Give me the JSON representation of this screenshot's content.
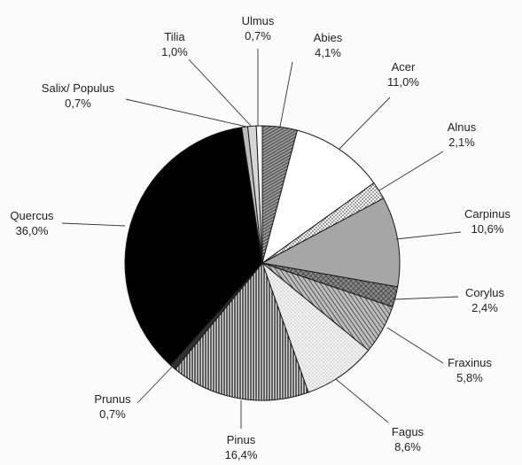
{
  "chart_data": {
    "type": "pie",
    "title": "",
    "start_angle_deg": 0,
    "direction": "clockwise",
    "slices": [
      {
        "label": "Abies",
        "value_label": "4,1%",
        "value": 4.1,
        "fill": "hatch-dense",
        "color": "#6a6a6a"
      },
      {
        "label": "Acer",
        "value_label": "11,0%",
        "value": 11.0,
        "fill": "solid",
        "color": "#ffffff"
      },
      {
        "label": "Alnus",
        "value_label": "2,1%",
        "value": 2.1,
        "fill": "dots",
        "color": "#c8c8c8"
      },
      {
        "label": "Carpinus",
        "value_label": "10,6%",
        "value": 10.6,
        "fill": "solid",
        "color": "#a6a6a6"
      },
      {
        "label": "Corylus",
        "value_label": "2,4%",
        "value": 2.4,
        "fill": "hatch-cross",
        "color": "#5a5a5a"
      },
      {
        "label": "Fraxinus",
        "value_label": "5,8%",
        "value": 5.8,
        "fill": "hatch-diag",
        "color": "#7a7a7a"
      },
      {
        "label": "Fagus",
        "value_label": "8,6%",
        "value": 8.6,
        "fill": "stipple",
        "color": "#e0e0e0"
      },
      {
        "label": "Pinus",
        "value_label": "16,4%",
        "value": 16.4,
        "fill": "hatch-vertical",
        "color": "#6e6e6e"
      },
      {
        "label": "Prunus",
        "value_label": "0,7%",
        "value": 0.7,
        "fill": "solid",
        "color": "#303030"
      },
      {
        "label": "Quercus",
        "value_label": "36,0%",
        "value": 36.0,
        "fill": "solid",
        "color": "#000000"
      },
      {
        "label": "Salix/ Populus",
        "value_label": "0,7%",
        "value": 0.7,
        "fill": "solid",
        "color": "#bdbdbd"
      },
      {
        "label": "Tilia",
        "value_label": "1,0%",
        "value": 1.0,
        "fill": "solid",
        "color": "#d6d6d6"
      },
      {
        "label": "Ulmus",
        "value_label": "0,7%",
        "value": 0.7,
        "fill": "solid",
        "color": "#ffffff"
      }
    ]
  }
}
